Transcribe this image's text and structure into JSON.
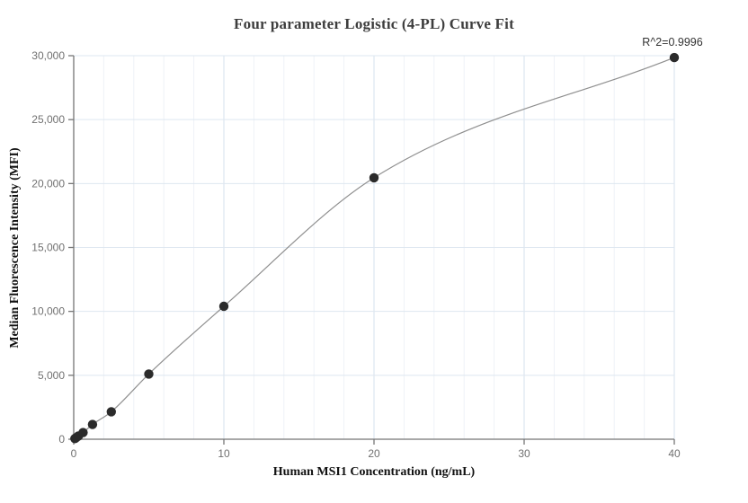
{
  "chart_data": {
    "type": "scatter",
    "title": "Four parameter Logistic (4-PL) Curve Fit",
    "xlabel": "Human MSI1 Concentration (ng/mL)",
    "ylabel": "Median Fluorescence Intensity (MFI)",
    "annotation": "R^2=0.9996",
    "x": [
      0.078,
      0.156,
      0.3125,
      0.625,
      1.25,
      2.5,
      5,
      10,
      20,
      40
    ],
    "y": [
      50,
      120,
      250,
      520,
      1150,
      2150,
      5100,
      10400,
      20450,
      29850
    ],
    "fit_line": "4PL curve through points",
    "xlim": [
      0,
      40
    ],
    "ylim": [
      0,
      30000
    ],
    "x_ticks": {
      "values": [
        0,
        10,
        20,
        30,
        40
      ],
      "labels": [
        "0",
        "10",
        "20",
        "30",
        "40"
      ]
    },
    "y_ticks": {
      "values": [
        0,
        5000,
        10000,
        15000,
        20000,
        25000,
        30000
      ],
      "labels": [
        "0",
        "5,000",
        "10,000",
        "15,000",
        "20,000",
        "25,000",
        "30,000"
      ]
    },
    "x_minor_grid_step": 2,
    "grid": "on",
    "legend": "none",
    "colors": {
      "point": "#2b2b2b",
      "curve": "#8f8f8f",
      "axis": "#757575",
      "tick_label": "#707070",
      "grid_minor": "#eef2f7",
      "grid_major": "#d6e0ec",
      "grid_horizontal": "#dee7f0",
      "title": "#3d3d3d",
      "axis_label": "#111111",
      "annotation": "#333333"
    }
  }
}
